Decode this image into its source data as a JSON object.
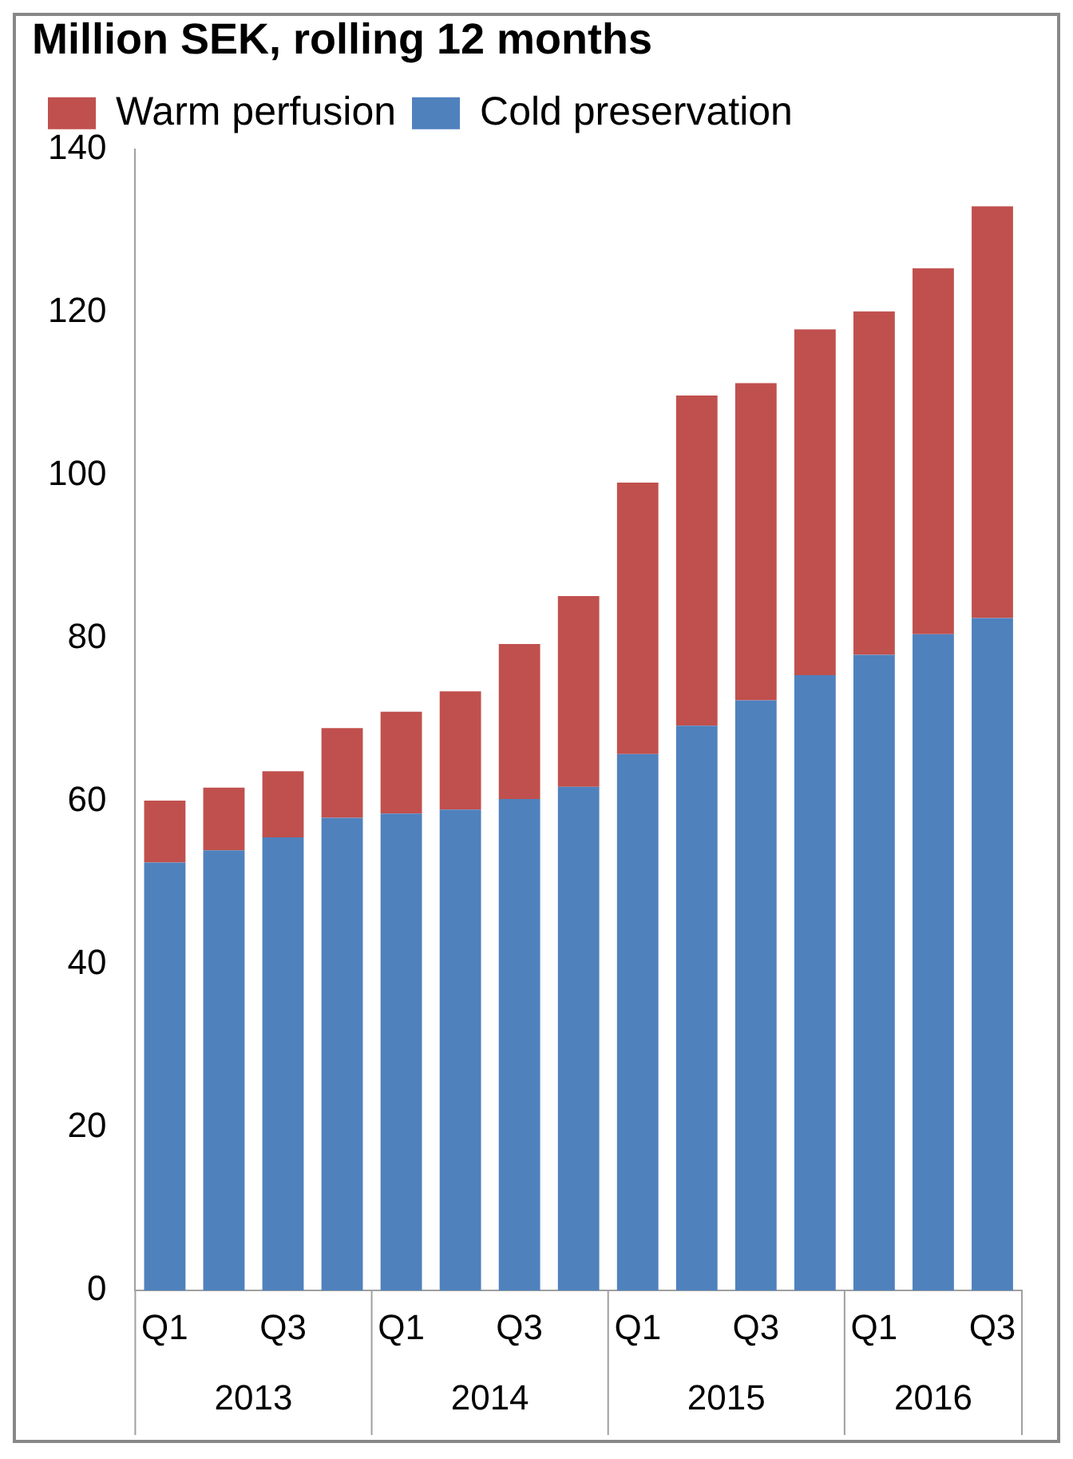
{
  "chart_data": {
    "type": "bar",
    "title": "Million SEK, rolling 12 months",
    "stacked": true,
    "legend": "top left",
    "grid": false,
    "categories": [
      "Q1",
      null,
      "Q3",
      null,
      "Q1",
      null,
      "Q3",
      null,
      "Q1",
      null,
      "Q3",
      null,
      "Q1",
      null,
      "Q3"
    ],
    "annotations": [
      "2013",
      "2014",
      "2015",
      "2016"
    ],
    "ylim": [
      0,
      140
    ],
    "yticks": [
      0,
      20,
      40,
      60,
      80,
      100,
      120,
      140
    ],
    "series": [
      {
        "name": "Cold preservation",
        "color": "#4f81bd",
        "values": [
          52.5,
          54,
          55.6,
          58,
          58.5,
          59,
          60.3,
          61.8,
          65.8,
          69.3,
          72.4,
          75.5,
          78,
          80.5,
          82.5
        ]
      },
      {
        "name": "Warm perfusion",
        "color": "#c0504d",
        "values": [
          7.6,
          7.7,
          8.1,
          11,
          12.5,
          14.5,
          19,
          23.4,
          33.3,
          40.5,
          38.9,
          42.4,
          42.1,
          44.9,
          50.5
        ]
      }
    ]
  }
}
